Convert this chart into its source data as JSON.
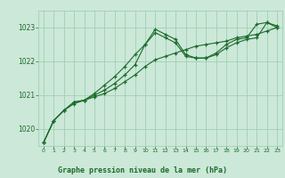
{
  "title": "Graphe pression niveau de la mer (hPa)",
  "bg_color": "#cce8d8",
  "grid_color": "#9fcfb5",
  "line_color": "#1a6b2a",
  "series1": {
    "x": [
      0,
      1,
      2,
      3,
      4,
      5,
      6,
      7,
      8,
      9,
      10,
      11,
      12,
      13,
      14,
      15,
      16,
      17,
      18,
      19,
      20,
      21,
      22,
      23
    ],
    "y": [
      1019.6,
      1020.25,
      1020.55,
      1020.75,
      1020.85,
      1020.95,
      1021.05,
      1021.2,
      1021.4,
      1021.6,
      1021.85,
      1022.05,
      1022.15,
      1022.25,
      1022.35,
      1022.45,
      1022.5,
      1022.55,
      1022.6,
      1022.7,
      1022.75,
      1022.8,
      1022.9,
      1023.0
    ]
  },
  "series2": {
    "x": [
      0,
      1,
      2,
      3,
      4,
      5,
      6,
      7,
      8,
      9,
      10,
      11,
      12,
      13,
      14,
      15,
      16,
      17,
      18,
      19,
      20,
      21,
      22,
      23
    ],
    "y": [
      1019.6,
      1020.25,
      1020.55,
      1020.8,
      1020.85,
      1021.0,
      1021.15,
      1021.35,
      1021.6,
      1021.9,
      1022.5,
      1022.85,
      1022.7,
      1022.55,
      1022.15,
      1022.1,
      1022.1,
      1022.2,
      1022.4,
      1022.55,
      1022.65,
      1022.7,
      1023.15,
      1023.05
    ]
  },
  "series3": {
    "x": [
      0,
      1,
      2,
      3,
      4,
      5,
      6,
      7,
      8,
      9,
      10,
      11,
      12,
      13,
      14,
      15,
      16,
      17,
      18,
      19,
      20,
      21,
      22,
      23
    ],
    "y": [
      1019.6,
      1020.25,
      1020.55,
      1020.8,
      1020.85,
      1021.05,
      1021.3,
      1021.55,
      1021.85,
      1022.2,
      1022.5,
      1022.95,
      1022.8,
      1022.65,
      1022.2,
      1022.1,
      1022.1,
      1022.25,
      1022.5,
      1022.65,
      1022.7,
      1023.1,
      1023.15,
      1023.0
    ]
  },
  "ylim": [
    1019.5,
    1023.5
  ],
  "yticks": [
    1020,
    1021,
    1022,
    1023
  ],
  "xlim": [
    -0.5,
    23.5
  ],
  "xticks": [
    0,
    1,
    2,
    3,
    4,
    5,
    6,
    7,
    8,
    9,
    10,
    11,
    12,
    13,
    14,
    15,
    16,
    17,
    18,
    19,
    20,
    21,
    22,
    23
  ],
  "figsize": [
    3.2,
    2.0
  ],
  "dpi": 100
}
